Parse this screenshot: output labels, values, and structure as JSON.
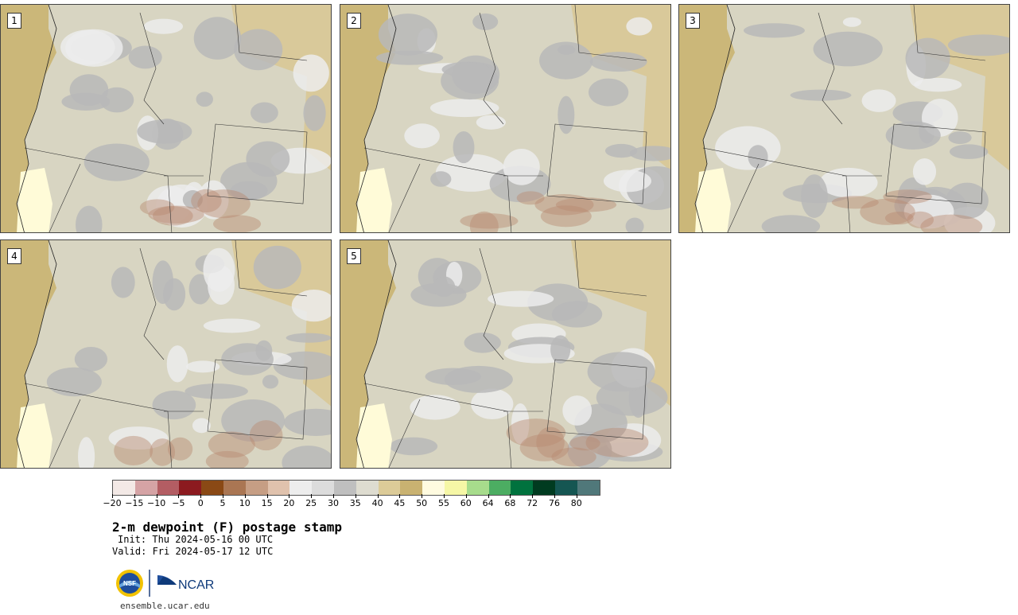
{
  "panels": [
    {
      "label": "1"
    },
    {
      "label": "2"
    },
    {
      "label": "3"
    },
    {
      "label": "4"
    },
    {
      "label": "5"
    }
  ],
  "colorbar": {
    "colors": [
      "#f3e9e6",
      "#d5a3a5",
      "#b35d63",
      "#8c1a1f",
      "#8a4915",
      "#aa7653",
      "#c69e84",
      "#e0c2ad",
      "#ededed",
      "#dcdcdc",
      "#bfbfbf",
      "#dedcd0",
      "#dccb98",
      "#c9b271",
      "#fffbe0",
      "#f6f7a6",
      "#a7dc8c",
      "#4cad62",
      "#00723e",
      "#003b20",
      "#155652",
      "#50787a"
    ],
    "ticks": [
      "−20",
      "−15",
      "−10",
      "−5",
      "0",
      "5",
      "10",
      "15",
      "20",
      "25",
      "30",
      "35",
      "40",
      "45",
      "50",
      "55",
      "60",
      "64",
      "68",
      "72",
      "76",
      "80"
    ]
  },
  "title": "2-m dewpoint (F) postage stamp",
  "init": "Init: Thu 2024-05-16 00 UTC",
  "valid": "Valid: Fri 2024-05-17 12 UTC",
  "logos": {
    "nsf": "NSF",
    "ncar": "NCAR"
  },
  "site": "ensemble.ucar.edu",
  "map_colors": {
    "ocean": "#cbb779",
    "land": "#d8d5c2",
    "gray": "#b8b8b8",
    "light": "#ececec",
    "tan": "#d9c99a",
    "brown": "#b98a72",
    "yellow": "#fffbd8"
  }
}
